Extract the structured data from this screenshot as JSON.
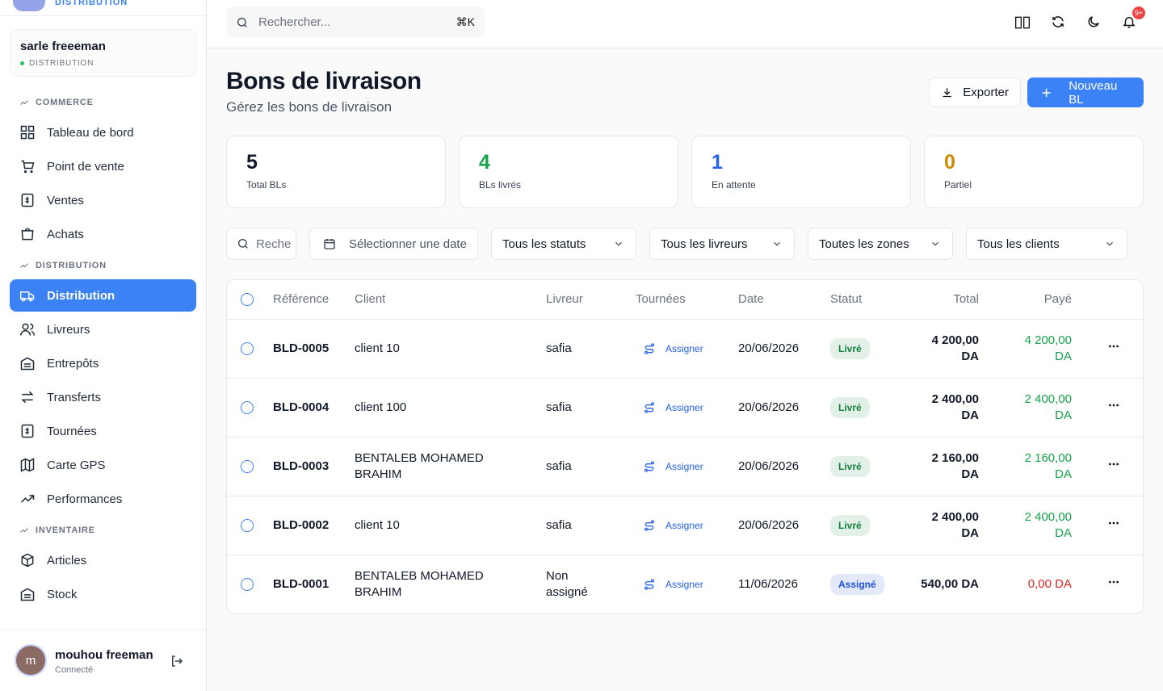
{
  "sidebar": {
    "brand": "DISTRIBUTION",
    "account": {
      "name": "sarle freeeman",
      "role": "DISTRIBUTION"
    },
    "sections": [
      {
        "title": "COMMERCE",
        "items": [
          "Tableau de bord",
          "Point de vente",
          "Ventes",
          "Achats"
        ]
      },
      {
        "title": "DISTRIBUTION",
        "items": [
          "Distribution",
          "Livreurs",
          "Entrepôts",
          "Transferts",
          "Tournées",
          "Carte GPS",
          "Performances"
        ]
      },
      {
        "title": "INVENTAIRE",
        "items": [
          "Articles",
          "Stock"
        ]
      }
    ],
    "user": {
      "initial": "m",
      "name": "mouhou freeman",
      "status": "Connecté"
    }
  },
  "topbar": {
    "search_placeholder": "Rechercher...",
    "shortcut": "⌘K",
    "notification_badge": "9+"
  },
  "header": {
    "title": "Bons de livraison",
    "subtitle": "Gérez les bons de livraison",
    "export": "Exporter",
    "new": "Nouveau BL"
  },
  "stats": [
    {
      "value": 5,
      "label": "Total BLs",
      "color": "#111827"
    },
    {
      "value": 4,
      "label": "BLs livrés",
      "color": "#16a34a"
    },
    {
      "value": 1,
      "label": "En attente",
      "color": "#2563eb"
    },
    {
      "value": 0,
      "label": "Partiel",
      "color": "#ca8a04"
    }
  ],
  "filters": {
    "search_placeholder": "Reche",
    "date": "Sélectionner une date",
    "selects": [
      "Tous les statuts",
      "Tous les livreurs",
      "Toutes les zones",
      "Tous les clients"
    ]
  },
  "table": {
    "columns": [
      "Référence",
      "Client",
      "Livreur",
      "Tournées",
      "Date",
      "Statut",
      "Total",
      "Payé"
    ],
    "rows": [
      {
        "reference": "BLD-0005",
        "client": "client 10",
        "livreur": "safia",
        "tournees": "Assigner",
        "date": "20/06/2026",
        "statut": "Livré",
        "status_color": "#15803d",
        "total": "4 200,00 DA",
        "paye": "4 200,00 DA",
        "paid_color": "#16a34a"
      },
      {
        "reference": "BLD-0004",
        "client": "client 100",
        "livreur": "safia",
        "tournees": "Assigner",
        "date": "20/06/2026",
        "statut": "Livré",
        "status_color": "#15803d",
        "total": "2 400,00 DA",
        "paye": "2 400,00 DA",
        "paid_color": "#16a34a"
      },
      {
        "reference": "BLD-0003",
        "client": "BENTALEB MOHAMED BRAHIM",
        "livreur": "safia",
        "tournees": "Assigner",
        "date": "20/06/2026",
        "statut": "Livré",
        "status_color": "#15803d",
        "total": "2 160,00 DA",
        "paye": "2 160,00 DA",
        "paid_color": "#16a34a"
      },
      {
        "reference": "BLD-0002",
        "client": "client 10",
        "livreur": "safia",
        "tournees": "Assigner",
        "date": "20/06/2026",
        "statut": "Livré",
        "status_color": "#15803d",
        "total": "2 400,00 DA",
        "paye": "2 400,00 DA",
        "paid_color": "#16a34a"
      },
      {
        "reference": "BLD-0001",
        "client": "BENTALEB MOHAMED BRAHIM",
        "livreur": "Non assigné",
        "tournees": "Assigner",
        "date": "11/06/2026",
        "statut": "Assigné",
        "status_color": "#1d4ed8",
        "total": "540,00 DA",
        "paye": "0,00 DA",
        "paid_color": "#dc2626"
      }
    ]
  }
}
